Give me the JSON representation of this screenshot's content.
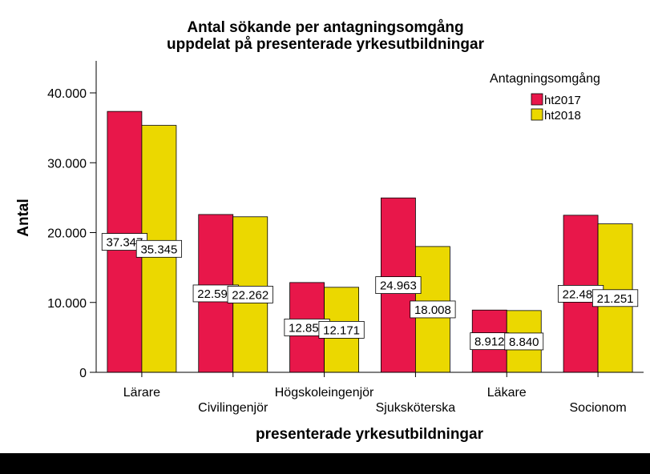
{
  "chart_data": {
    "type": "bar",
    "title": "Antal sökande per antagningsomgång",
    "subtitle": "uppdelat på presenterade yrkesutbildningar",
    "xlabel": "presenterade yrkesutbildningar",
    "ylabel": "Antal",
    "categories": [
      "Lärare",
      "Civilingenjör",
      "Högskoleingenjör",
      "Sjuksköterska",
      "Läkare",
      "Socionom"
    ],
    "series": [
      {
        "name": "ht2017",
        "color": "#E8174A",
        "values": [
          37347,
          22591,
          12853,
          24963,
          8912,
          22485
        ],
        "labels": [
          "37.347",
          "22.591",
          "12.853",
          "24.963",
          "8.912",
          "22.485"
        ]
      },
      {
        "name": "ht2018",
        "color": "#EBD800",
        "values": [
          35345,
          22262,
          12171,
          18008,
          8840,
          21251
        ],
        "labels": [
          "35.345",
          "22.262",
          "12.171",
          "18.008",
          "8.840",
          "21.251"
        ]
      }
    ],
    "ylim": [
      0,
      40000
    ],
    "yticks": [
      0,
      10000,
      20000,
      30000,
      40000
    ],
    "ytick_labels": [
      "0",
      "10.000",
      "20.000",
      "30.000",
      "40.000"
    ],
    "legend_title": "Antagningsomgång",
    "legend_position": "top-right",
    "grid": false
  }
}
